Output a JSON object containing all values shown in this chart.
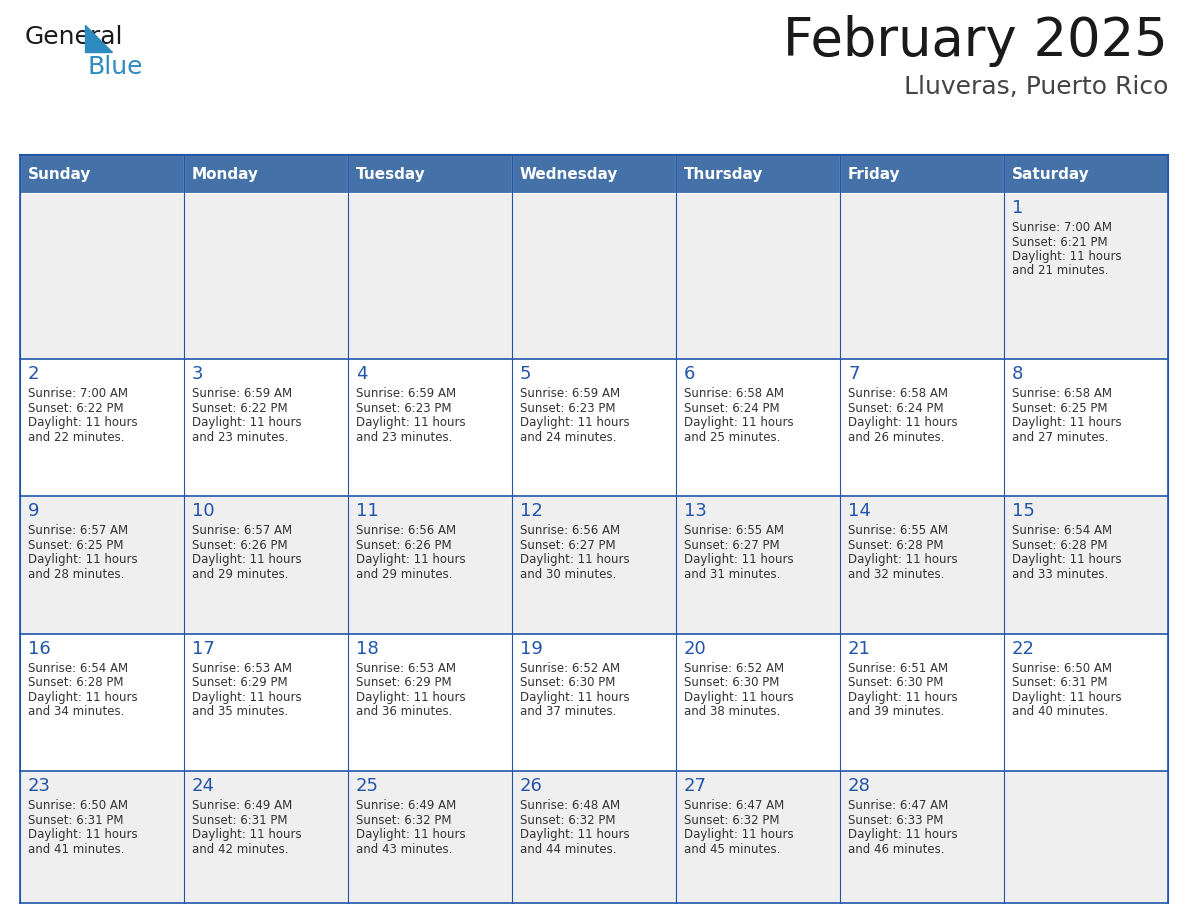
{
  "title": "February 2025",
  "subtitle": "Lluveras, Puerto Rico",
  "days_of_week": [
    "Sunday",
    "Monday",
    "Tuesday",
    "Wednesday",
    "Thursday",
    "Friday",
    "Saturday"
  ],
  "header_bg": "#4472a8",
  "header_text": "#FFFFFF",
  "cell_bg_even": "#EFEFEF",
  "cell_bg_odd": "#FFFFFF",
  "cell_text": "#333333",
  "day_num_color": "#2255aa",
  "border_color": "#2255aa",
  "title_color": "#1A1A1A",
  "subtitle_color": "#444444",
  "logo_general_color": "#1A1A1A",
  "logo_blue_color": "#2E8BC0",
  "calendar_data": [
    [
      null,
      null,
      null,
      null,
      null,
      null,
      {
        "day": 1,
        "sunrise": "7:00 AM",
        "sunset": "6:21 PM",
        "daylight": "11 hours and 21 minutes."
      }
    ],
    [
      {
        "day": 2,
        "sunrise": "7:00 AM",
        "sunset": "6:22 PM",
        "daylight": "11 hours and 22 minutes."
      },
      {
        "day": 3,
        "sunrise": "6:59 AM",
        "sunset": "6:22 PM",
        "daylight": "11 hours and 23 minutes."
      },
      {
        "day": 4,
        "sunrise": "6:59 AM",
        "sunset": "6:23 PM",
        "daylight": "11 hours and 23 minutes."
      },
      {
        "day": 5,
        "sunrise": "6:59 AM",
        "sunset": "6:23 PM",
        "daylight": "11 hours and 24 minutes."
      },
      {
        "day": 6,
        "sunrise": "6:58 AM",
        "sunset": "6:24 PM",
        "daylight": "11 hours and 25 minutes."
      },
      {
        "day": 7,
        "sunrise": "6:58 AM",
        "sunset": "6:24 PM",
        "daylight": "11 hours and 26 minutes."
      },
      {
        "day": 8,
        "sunrise": "6:58 AM",
        "sunset": "6:25 PM",
        "daylight": "11 hours and 27 minutes."
      }
    ],
    [
      {
        "day": 9,
        "sunrise": "6:57 AM",
        "sunset": "6:25 PM",
        "daylight": "11 hours and 28 minutes."
      },
      {
        "day": 10,
        "sunrise": "6:57 AM",
        "sunset": "6:26 PM",
        "daylight": "11 hours and 29 minutes."
      },
      {
        "day": 11,
        "sunrise": "6:56 AM",
        "sunset": "6:26 PM",
        "daylight": "11 hours and 29 minutes."
      },
      {
        "day": 12,
        "sunrise": "6:56 AM",
        "sunset": "6:27 PM",
        "daylight": "11 hours and 30 minutes."
      },
      {
        "day": 13,
        "sunrise": "6:55 AM",
        "sunset": "6:27 PM",
        "daylight": "11 hours and 31 minutes."
      },
      {
        "day": 14,
        "sunrise": "6:55 AM",
        "sunset": "6:28 PM",
        "daylight": "11 hours and 32 minutes."
      },
      {
        "day": 15,
        "sunrise": "6:54 AM",
        "sunset": "6:28 PM",
        "daylight": "11 hours and 33 minutes."
      }
    ],
    [
      {
        "day": 16,
        "sunrise": "6:54 AM",
        "sunset": "6:28 PM",
        "daylight": "11 hours and 34 minutes."
      },
      {
        "day": 17,
        "sunrise": "6:53 AM",
        "sunset": "6:29 PM",
        "daylight": "11 hours and 35 minutes."
      },
      {
        "day": 18,
        "sunrise": "6:53 AM",
        "sunset": "6:29 PM",
        "daylight": "11 hours and 36 minutes."
      },
      {
        "day": 19,
        "sunrise": "6:52 AM",
        "sunset": "6:30 PM",
        "daylight": "11 hours and 37 minutes."
      },
      {
        "day": 20,
        "sunrise": "6:52 AM",
        "sunset": "6:30 PM",
        "daylight": "11 hours and 38 minutes."
      },
      {
        "day": 21,
        "sunrise": "6:51 AM",
        "sunset": "6:30 PM",
        "daylight": "11 hours and 39 minutes."
      },
      {
        "day": 22,
        "sunrise": "6:50 AM",
        "sunset": "6:31 PM",
        "daylight": "11 hours and 40 minutes."
      }
    ],
    [
      {
        "day": 23,
        "sunrise": "6:50 AM",
        "sunset": "6:31 PM",
        "daylight": "11 hours and 41 minutes."
      },
      {
        "day": 24,
        "sunrise": "6:49 AM",
        "sunset": "6:31 PM",
        "daylight": "11 hours and 42 minutes."
      },
      {
        "day": 25,
        "sunrise": "6:49 AM",
        "sunset": "6:32 PM",
        "daylight": "11 hours and 43 minutes."
      },
      {
        "day": 26,
        "sunrise": "6:48 AM",
        "sunset": "6:32 PM",
        "daylight": "11 hours and 44 minutes."
      },
      {
        "day": 27,
        "sunrise": "6:47 AM",
        "sunset": "6:32 PM",
        "daylight": "11 hours and 45 minutes."
      },
      {
        "day": 28,
        "sunrise": "6:47 AM",
        "sunset": "6:33 PM",
        "daylight": "11 hours and 46 minutes."
      },
      null
    ]
  ]
}
